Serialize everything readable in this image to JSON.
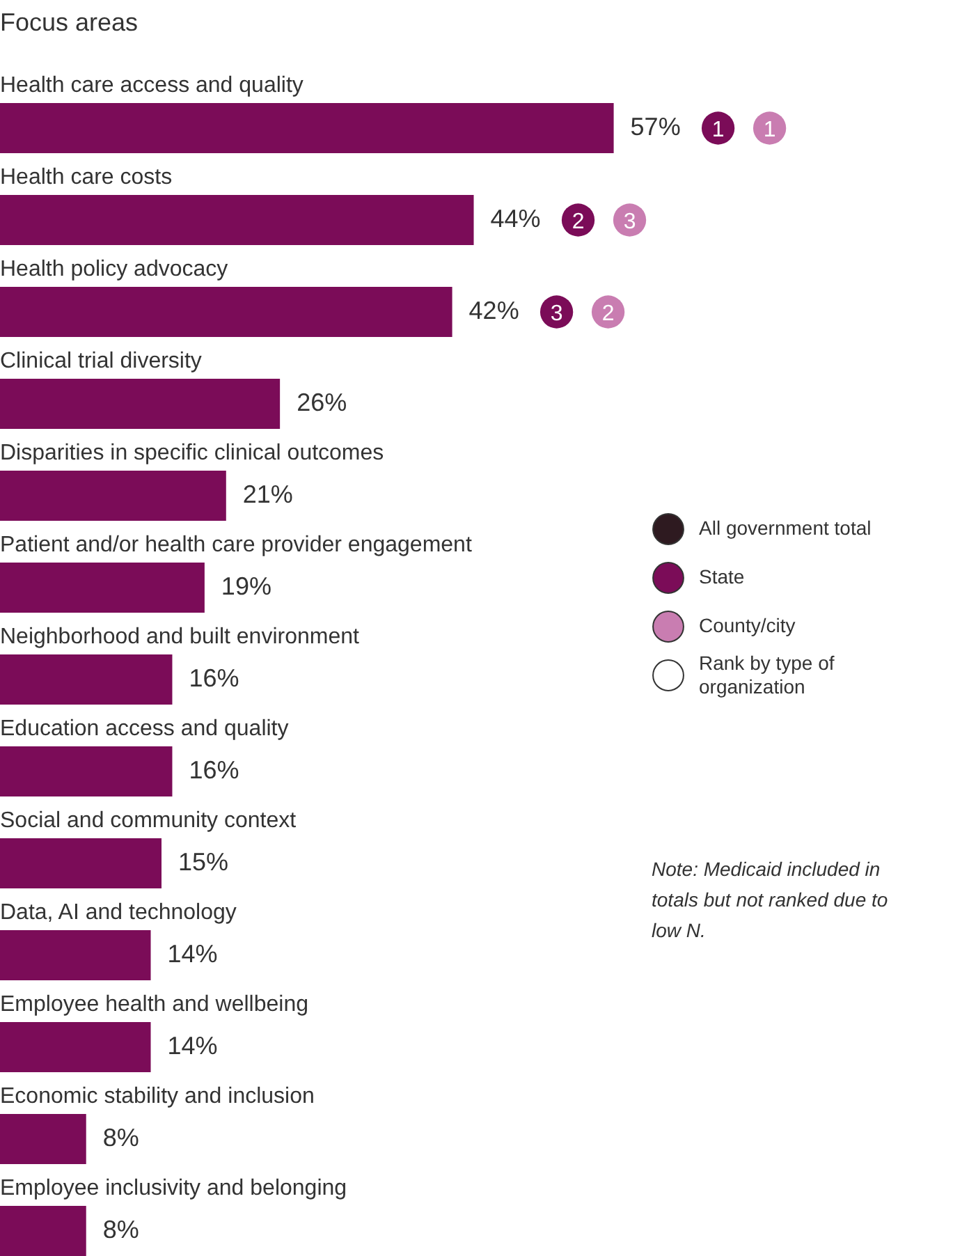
{
  "chart_data": {
    "type": "bar",
    "orientation": "horizontal",
    "title": "Focus areas",
    "categories": [
      "Health care access and quality",
      "Health care costs",
      "Health policy advocacy",
      "Clinical trial diversity",
      "Disparities in specific clinical outcomes",
      "Patient and/or health care provider engagement",
      "Neighborhood and built environment",
      "Education access and quality",
      "Social and community context",
      "Data, AI and technology",
      "Employee health and wellbeing",
      "Economic stability and inclusion",
      "Employee inclusivity and belonging"
    ],
    "xlim": [
      0,
      90
    ],
    "tick_labels": false,
    "series": [
      {
        "color": "#7b0c58",
        "values": [
          57,
          44,
          42,
          26,
          21,
          19,
          16,
          16,
          15,
          14,
          14,
          8,
          8
        ],
        "value_labels": [
          "57%",
          "44%",
          "42%",
          "26%",
          "21%",
          "19%",
          "16%",
          "16%",
          "15%",
          "14%",
          "14%",
          "8%",
          "8%"
        ]
      },
      {
        "type": "scatter",
        "name": "All government total",
        "color": "#2e1a20",
        "values": [
          null,
          null,
          null,
          null,
          null,
          null,
          null,
          null,
          null,
          null,
          null,
          null,
          null
        ]
      },
      {
        "type": "scatter",
        "name": "State",
        "color": "#7b0c58",
        "values": [
          null,
          null,
          null,
          null,
          null,
          null,
          null,
          null,
          null,
          null,
          null,
          null,
          null
        ],
        "value_labels": [
          "1",
          "2",
          "3",
          null,
          null,
          null,
          null,
          null,
          null,
          null,
          null,
          null,
          null
        ]
      },
      {
        "type": "scatter",
        "name": "County/city",
        "color": "#c97db1",
        "values": [
          null,
          null,
          null,
          null,
          null,
          null,
          null,
          null,
          null,
          null,
          null,
          null,
          null
        ],
        "value_labels": [
          "1",
          "3",
          "2",
          null,
          null,
          null,
          null,
          null,
          null,
          null,
          null,
          null,
          null
        ]
      },
      {
        "type": "scatter",
        "name": "Rank by type of organization",
        "color": "#ffffff",
        "values": [
          null,
          null,
          null,
          null,
          null,
          null,
          null,
          null,
          null,
          null,
          null,
          null,
          null
        ]
      }
    ],
    "legend": "right",
    "annotations": [
      "Note: Medicaid included in totals but not ranked due to low N."
    ]
  }
}
